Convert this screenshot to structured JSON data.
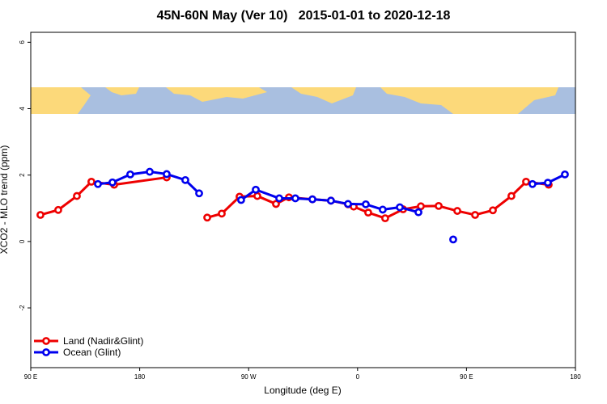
{
  "chart_data": {
    "type": "line",
    "title": "45N-60N May (Ver 10)   2015-01-01 to 2020-12-18",
    "x_label": "Longitude (deg E)",
    "y_label": "XCO2 - MLO trend (ppm)",
    "xlim": [
      90,
      540
    ],
    "xticks": [
      {
        "value": 90,
        "label": "90 E"
      },
      {
        "value": 180,
        "label": "180"
      },
      {
        "value": 270,
        "label": "90 W"
      },
      {
        "value": 360,
        "label": "0"
      },
      {
        "value": 450,
        "label": "90 E"
      },
      {
        "value": 540,
        "label": "180"
      }
    ],
    "ylim": [
      -3.8,
      6.3
    ],
    "yticks": [
      -2,
      0,
      2,
      4,
      6
    ],
    "legend": "bottom-left",
    "series": [
      {
        "name": "Land (Nadir&Glint)",
        "color": "#ee0000",
        "x": [
          98.0,
          112.7,
          128.1,
          140.1,
          158.9,
          202.3,
          null,
          235.8,
          247.8,
          262.5,
          277.2,
          292.6,
          303.3,
          322.7,
          338.0,
          352.1,
          356.8,
          368.8,
          382.8,
          397.6,
          412.3,
          427.0,
          442.4,
          457.1,
          471.8,
          487.1,
          499.2,
          517.9
        ],
        "values": [
          0.8,
          0.95,
          1.37,
          1.8,
          1.71,
          1.93,
          null,
          0.72,
          0.84,
          1.35,
          1.37,
          1.13,
          1.33,
          1.27,
          1.23,
          1.12,
          1.05,
          0.87,
          0.7,
          0.97,
          1.06,
          1.07,
          0.92,
          0.8,
          0.94,
          1.37,
          1.8,
          1.71
        ]
      },
      {
        "name": "Ocean (Glint)",
        "color": "#0000ee",
        "x": [
          145.5,
          157.5,
          172.2,
          188.3,
          202.3,
          217.7,
          229.1,
          null,
          263.8,
          275.9,
          295.3,
          308.6,
          322.7,
          338.0,
          352.1,
          366.8,
          380.8,
          394.9,
          410.3,
          null,
          439.0,
          null,
          504.5,
          517.2,
          531.3
        ],
        "values": [
          1.73,
          1.78,
          2.02,
          2.1,
          2.03,
          1.85,
          1.45,
          null,
          1.25,
          1.56,
          1.3,
          1.3,
          1.27,
          1.23,
          1.13,
          1.12,
          0.96,
          1.03,
          0.88,
          null,
          0.06,
          null,
          1.73,
          1.77,
          2.02
        ]
      }
    ]
  }
}
